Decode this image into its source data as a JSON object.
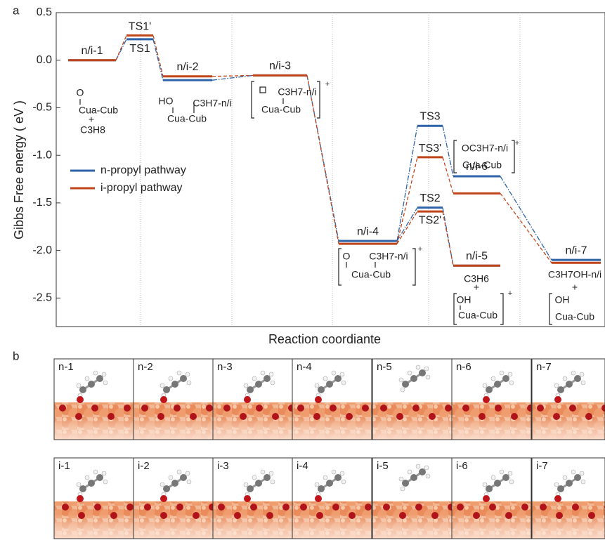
{
  "panel_a_label": "a",
  "chart_data": {
    "type": "energy-diagram",
    "ylabel": "Gibbs Free energy ( eV )",
    "xlabel": "Reaction coordiante",
    "ylim": [
      -2.8,
      0.5
    ],
    "yticks": [
      0.5,
      {
        "value": 0,
        "label": "0.0"
      },
      -0.5,
      {
        "value": -1,
        "label": "-1.0"
      },
      -1.5,
      {
        "value": -2,
        "label": "-2.0"
      },
      -2.5
    ],
    "categories": [
      "n/i-1",
      "TS1",
      "n/i-2",
      "n/i-3",
      "n/i-4",
      "TS2",
      "TS3",
      "n/i-5",
      "n/i-6",
      "n/i-7"
    ],
    "prime_labels": [
      "TS1'",
      "TS2'",
      "TS3'"
    ],
    "series": [
      {
        "name": "n-propyl pathway",
        "color": "#2e63a8",
        "values": [
          0.0,
          0.22,
          -0.21,
          -0.16,
          -1.9,
          -1.55,
          -0.69,
          -2.16,
          -1.22,
          -2.1
        ]
      },
      {
        "name": "i-propyl pathway",
        "color": "#c0451b",
        "values": [
          0.0,
          0.26,
          -0.17,
          -0.16,
          -1.93,
          -1.59,
          -1.02,
          -2.16,
          -1.4,
          -2.13
        ]
      }
    ],
    "annotations": [
      [
        "O",
        "Cua-Cub",
        "+",
        "C3H8"
      ],
      [
        "HO",
        "C3H7-n/i",
        "Cua-Cub"
      ],
      [
        "C3H7-n/i",
        "Cua-Cub",
        "+"
      ],
      [
        "O",
        "C3H7-n/i",
        "Cua-Cub",
        "+"
      ],
      [
        "C3H6",
        "+",
        "OH",
        "Cua-Cub",
        "+"
      ],
      [
        "OC3H7-n/i",
        "Cua-Cub",
        "+"
      ],
      [
        "C3H7OH-n/i",
        "+",
        "OH",
        "Cua-Cub"
      ]
    ]
  },
  "panel_b": {
    "label": "b",
    "rows": [
      [
        "n-1",
        "n-2",
        "n-3",
        "n-4",
        "n-5",
        "n-6",
        "n-7"
      ],
      [
        "i-1",
        "i-2",
        "i-3",
        "i-4",
        "i-5",
        "i-6",
        "i-7"
      ]
    ]
  }
}
